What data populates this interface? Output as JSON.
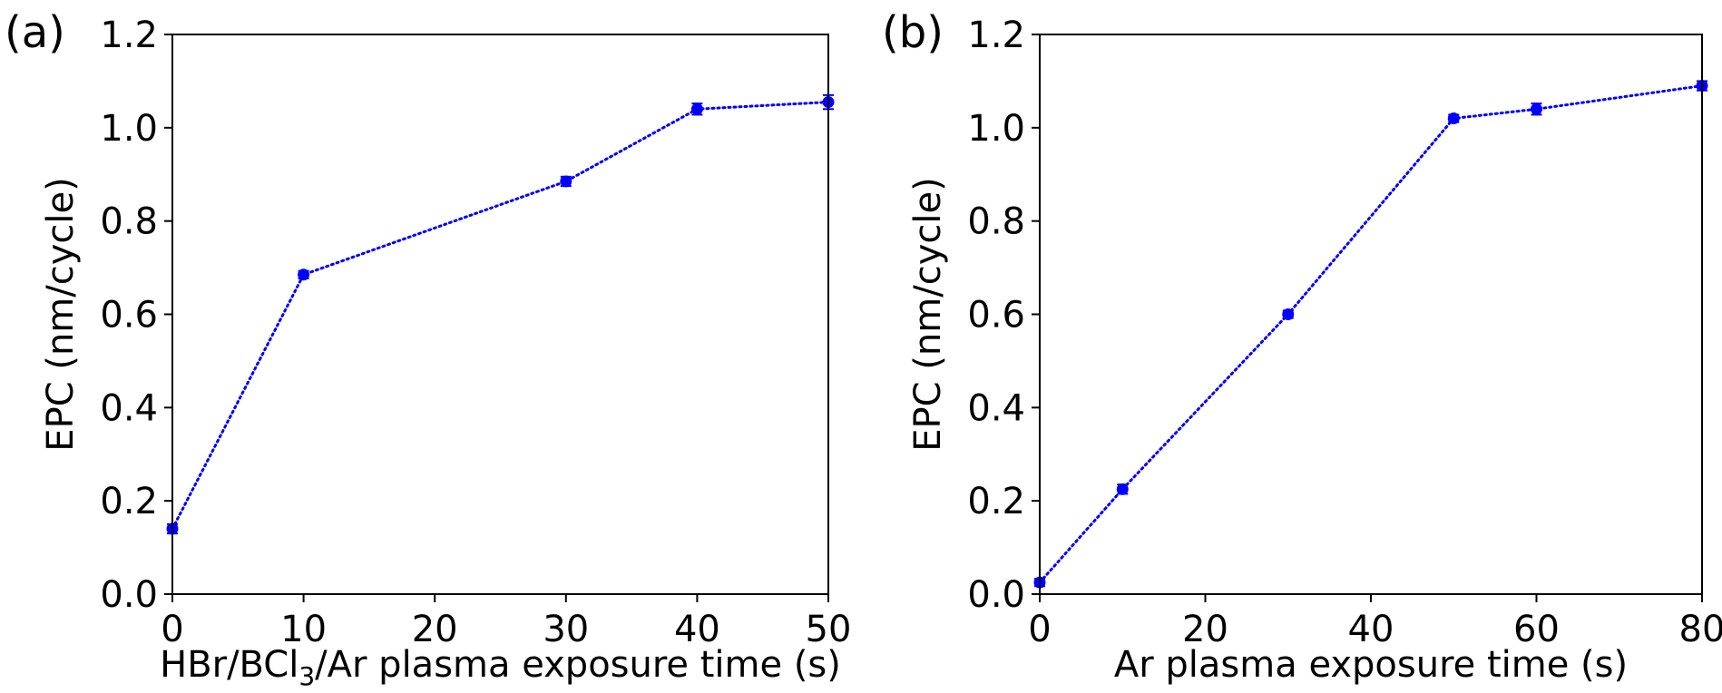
{
  "chart_data": [
    {
      "type": "line",
      "panel_label": "(a)",
      "xlabel": "HBr/BCl",
      "xlabel_subscript": "3",
      "xlabel_suffix": "/Ar plasma exposure time (s)",
      "ylabel": "EPC (nm/cycle)",
      "xlim": [
        0,
        50
      ],
      "ylim": [
        0,
        1.2
      ],
      "xticks": [
        0,
        10,
        20,
        30,
        40,
        50
      ],
      "xtick_labels": [
        "0",
        "10",
        "20",
        "30",
        "40",
        "50"
      ],
      "yticks": [
        0,
        0.2,
        0.4,
        0.6,
        0.8,
        1.0,
        1.2
      ],
      "ytick_labels": [
        "0.0",
        "0.2",
        "0.4",
        "0.6",
        "0.8",
        "1.0",
        "1.2"
      ],
      "color": "#0000ff",
      "line_style": "dotted",
      "series": [
        {
          "name": "EPC",
          "x": [
            0,
            10,
            30,
            40,
            50
          ],
          "y": [
            0.14,
            0.685,
            0.885,
            1.04,
            1.055
          ],
          "yerr": [
            0.01,
            0.008,
            0.01,
            0.012,
            0.015
          ]
        }
      ]
    },
    {
      "type": "line",
      "panel_label": "(b)",
      "xlabel": "Ar plasma exposure time (s)",
      "xlabel_subscript": "",
      "xlabel_suffix": "",
      "ylabel": "EPC (nm/cycle)",
      "xlim": [
        0,
        80
      ],
      "ylim": [
        0,
        1.2
      ],
      "xticks": [
        0,
        20,
        40,
        60,
        80
      ],
      "xtick_labels": [
        "0",
        "20",
        "40",
        "60",
        "80"
      ],
      "yticks": [
        0,
        0.2,
        0.4,
        0.6,
        0.8,
        1.0,
        1.2
      ],
      "ytick_labels": [
        "0.0",
        "0.2",
        "0.4",
        "0.6",
        "0.8",
        "1.0",
        "1.2"
      ],
      "color": "#0000ff",
      "line_style": "dotted",
      "series": [
        {
          "name": "EPC",
          "x": [
            0,
            10,
            30,
            50,
            60,
            80
          ],
          "y": [
            0.025,
            0.225,
            0.6,
            1.02,
            1.04,
            1.09
          ],
          "yerr": [
            0.008,
            0.01,
            0.008,
            0.008,
            0.012,
            0.01
          ]
        }
      ]
    }
  ]
}
